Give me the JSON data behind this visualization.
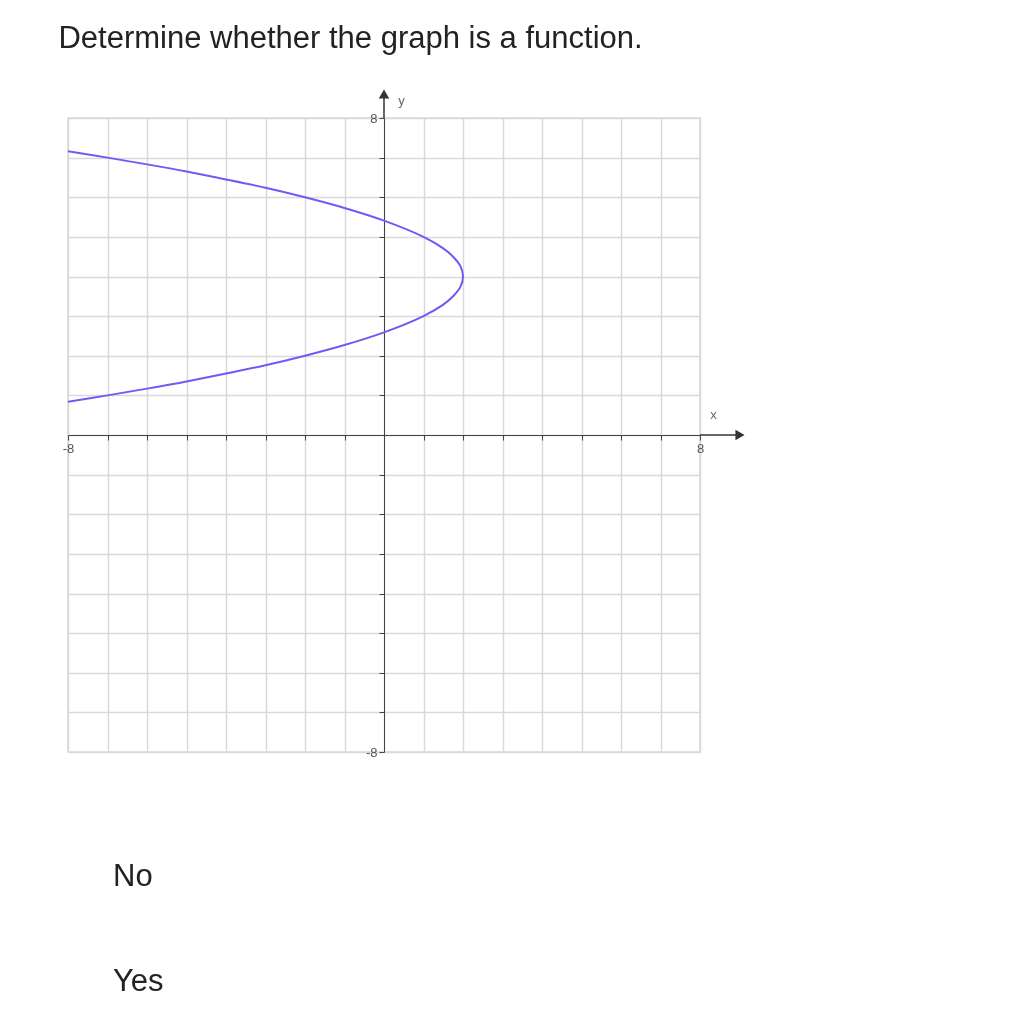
{
  "chart_data": {
    "type": "line",
    "title": "Determine whether the graph is a function.",
    "xlabel": "x",
    "ylabel": "y",
    "xlim": [
      -8,
      8
    ],
    "ylim": [
      -8,
      8
    ],
    "xticks": [
      -8,
      {
        "value": -7,
        "label": null
      },
      {
        "value": -6,
        "label": null
      },
      {
        "value": -5,
        "label": null
      },
      {
        "value": -4,
        "label": null
      },
      {
        "value": -3,
        "label": null
      },
      {
        "value": -2,
        "label": null
      },
      {
        "value": -1,
        "label": null
      },
      {
        "value": 0,
        "label": null
      },
      {
        "value": 1,
        "label": null
      },
      {
        "value": 2,
        "label": null
      },
      {
        "value": 3,
        "label": null
      },
      {
        "value": 4,
        "label": null
      },
      {
        "value": 5,
        "label": null
      },
      {
        "value": 6,
        "label": null
      },
      {
        "value": 7,
        "label": null
      },
      8
    ],
    "yticks": [
      -8,
      {
        "value": -7,
        "label": null
      },
      {
        "value": -6,
        "label": null
      },
      {
        "value": -5,
        "label": null
      },
      {
        "value": -4,
        "label": null
      },
      {
        "value": -3,
        "label": null
      },
      {
        "value": -2,
        "label": null
      },
      {
        "value": -1,
        "label": null
      },
      {
        "value": 0,
        "label": null
      },
      {
        "value": 1,
        "label": null
      },
      {
        "value": 2,
        "label": null
      },
      {
        "value": 3,
        "label": null
      },
      {
        "value": 4,
        "label": null
      },
      {
        "value": 5,
        "label": null
      },
      {
        "value": 6,
        "label": null
      },
      {
        "value": 7,
        "label": null
      },
      8
    ],
    "grid": true,
    "series": [
      {
        "color": "#6b5cf5",
        "x": [
          -8,
          -7,
          -6,
          -5,
          -4,
          -3,
          -2,
          -1,
          0,
          1,
          1.5,
          1.75,
          1.94,
          2,
          1.94,
          1.75,
          1.5,
          1,
          0,
          -1,
          -2,
          -3,
          -4,
          -5,
          -6,
          -7,
          -8
        ],
        "values": [
          7.16,
          7,
          6.83,
          6.65,
          6.45,
          6.24,
          6,
          5.73,
          5.41,
          5,
          4.71,
          4.5,
          4.25,
          4,
          3.75,
          3.5,
          3.29,
          3,
          2.59,
          2.27,
          2,
          1.76,
          1.55,
          1.35,
          1.17,
          1,
          0.84
        ]
      }
    ],
    "annotations": [
      "No",
      "Yes"
    ]
  }
}
